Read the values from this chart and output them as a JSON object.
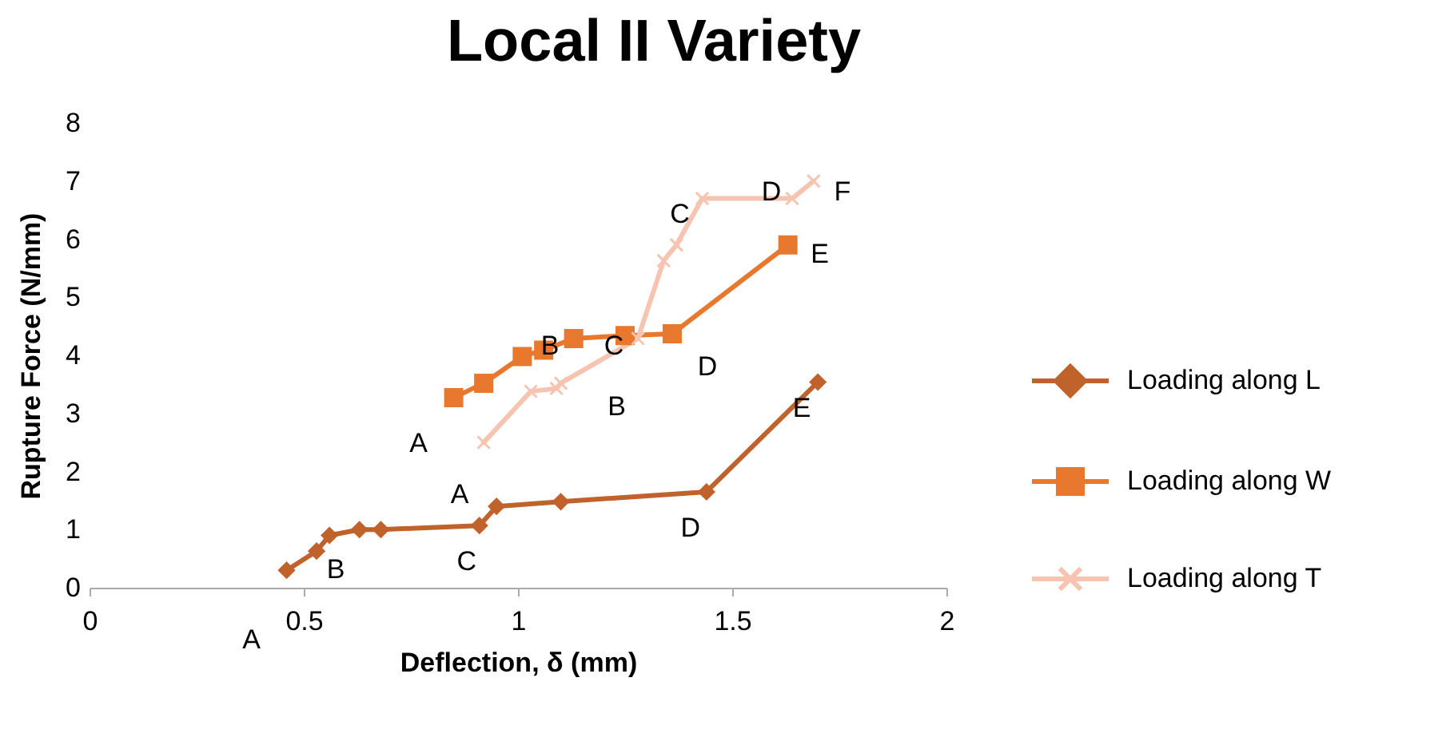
{
  "chart_data": {
    "type": "line",
    "title": "Local II Variety",
    "xlabel": "Deflection, δ (mm)",
    "ylabel": "Rupture Force (N/mm)",
    "xlim": [
      0,
      2
    ],
    "xticks": [
      0,
      0.5,
      1,
      1.5,
      2
    ],
    "ylim": [
      0,
      8
    ],
    "yticks": [
      0,
      1,
      2,
      3,
      4,
      5,
      6,
      7,
      8
    ],
    "legend": "right",
    "series": [
      {
        "name": "Loading along L",
        "color": "#c0622b",
        "marker": "diamond",
        "x": [
          0.46,
          0.53,
          0.56,
          0.63,
          0.68,
          0.91,
          0.95,
          1.1,
          1.44,
          1.7
        ],
        "values": [
          0.3,
          0.63,
          0.9,
          1.0,
          1.0,
          1.07,
          1.4,
          1.48,
          1.65,
          3.54
        ]
      },
      {
        "name": "Loading along W",
        "color": "#e8782e",
        "marker": "square",
        "x": [
          0.85,
          0.92,
          1.01,
          1.06,
          1.13,
          1.25,
          1.36,
          1.63
        ],
        "values": [
          3.27,
          3.52,
          3.98,
          4.09,
          4.29,
          4.34,
          4.37,
          5.9
        ]
      },
      {
        "name": "Loading along T",
        "color": "#f6c4b0",
        "marker": "cross",
        "x": [
          0.92,
          1.03,
          1.09,
          1.1,
          1.28,
          1.34,
          1.37,
          1.43,
          1.64,
          1.69
        ],
        "values": [
          2.5,
          3.38,
          3.43,
          3.52,
          4.29,
          5.63,
          5.9,
          6.7,
          6.7,
          7.0
        ]
      }
    ],
    "annotations": [
      {
        "text": "A",
        "x": 0.46,
        "y": 0.3
      },
      {
        "text": "B",
        "x": 0.53,
        "y": 0.63
      },
      {
        "text": "C",
        "x": 0.91,
        "y": 1.07
      },
      {
        "text": "A",
        "x": 0.95,
        "y": 1.4
      },
      {
        "text": "D",
        "x": 1.44,
        "y": 1.65
      },
      {
        "text": "E",
        "x": 1.7,
        "y": 3.54
      },
      {
        "text": "A",
        "x": 0.85,
        "y": 3.27
      },
      {
        "text": "B",
        "x": 1.06,
        "y": 4.09
      },
      {
        "text": "C",
        "x": 1.25,
        "y": 4.34
      },
      {
        "text": "D",
        "x": 1.36,
        "y": 4.37
      },
      {
        "text": "E",
        "x": 1.63,
        "y": 5.9
      },
      {
        "text": "B",
        "x": 1.1,
        "y": 3.52
      },
      {
        "text": "C",
        "x": 1.43,
        "y": 6.7
      },
      {
        "text": "D",
        "x": 1.64,
        "y": 6.7
      },
      {
        "text": "F",
        "x": 1.69,
        "y": 7.0
      }
    ]
  }
}
